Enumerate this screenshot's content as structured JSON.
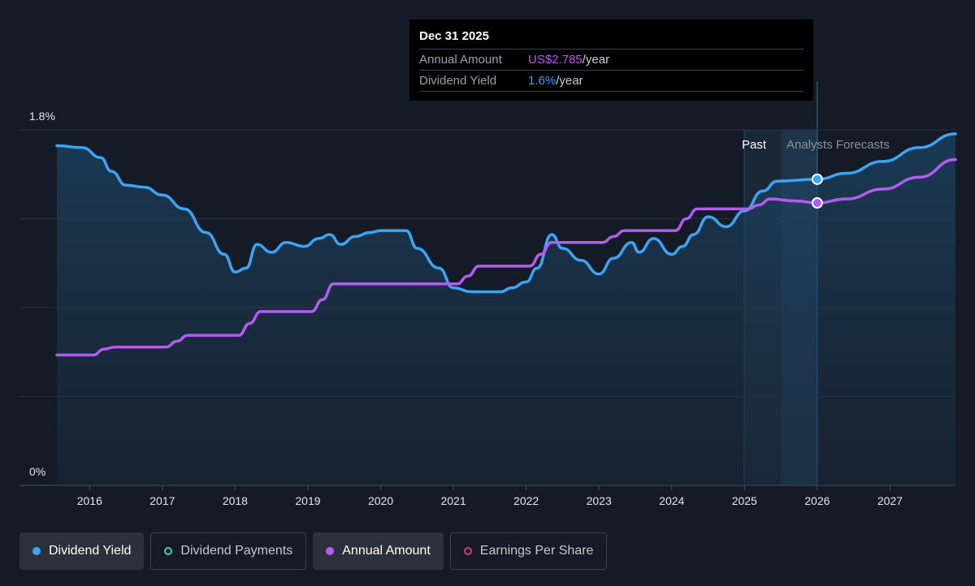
{
  "tooltip": {
    "date": "Dec 31 2025",
    "rows": [
      {
        "label": "Annual Amount",
        "value": "US$2.785",
        "unit": "/year"
      },
      {
        "label": "Dividend Yield",
        "value": "1.6%",
        "unit": "/year"
      }
    ]
  },
  "labels": {
    "past": "Past",
    "forecast": "Analysts Forecasts"
  },
  "legend": [
    {
      "label": "Dividend Yield",
      "color": "#3ba4f5",
      "filled": true,
      "active": true
    },
    {
      "label": "Dividend Payments",
      "color": "#40d0b8",
      "filled": false,
      "active": false
    },
    {
      "label": "Annual Amount",
      "color": "#b45cf2",
      "filled": true,
      "active": true
    },
    {
      "label": "Earnings Per Share",
      "color": "#d03a8a",
      "filled": false,
      "active": false
    }
  ],
  "colors": {
    "background": "#151b26",
    "yield": "#3ba4f5",
    "amount": "#b45cf2",
    "tooltip_bg": "#000000"
  },
  "chart_data": {
    "type": "line",
    "title": "",
    "xlabel": "",
    "ylabel": "",
    "x_ticks": [
      "2016",
      "2017",
      "2018",
      "2019",
      "2020",
      "2021",
      "2022",
      "2023",
      "2024",
      "2025",
      "2026",
      "2027"
    ],
    "y_ticks": [
      "0%",
      "1.8%"
    ],
    "ylim": [
      0,
      1.8
    ],
    "xlim": [
      2015.55,
      2027.9
    ],
    "past_forecast_split": 2025.5,
    "marker_x": 2026.0,
    "grid": true,
    "series": [
      {
        "name": "Dividend Yield",
        "color": "#3ba4f5",
        "area": true,
        "points": [
          [
            2015.55,
            1.72
          ],
          [
            2015.9,
            1.71
          ],
          [
            2016.15,
            1.66
          ],
          [
            2016.3,
            1.59
          ],
          [
            2016.5,
            1.52
          ],
          [
            2016.75,
            1.51
          ],
          [
            2017.0,
            1.47
          ],
          [
            2017.3,
            1.4
          ],
          [
            2017.6,
            1.28
          ],
          [
            2017.85,
            1.17
          ],
          [
            2018.0,
            1.08
          ],
          [
            2018.15,
            1.1
          ],
          [
            2018.3,
            1.22
          ],
          [
            2018.5,
            1.18
          ],
          [
            2018.7,
            1.23
          ],
          [
            2018.95,
            1.21
          ],
          [
            2019.15,
            1.25
          ],
          [
            2019.3,
            1.27
          ],
          [
            2019.45,
            1.22
          ],
          [
            2019.65,
            1.26
          ],
          [
            2019.85,
            1.28
          ],
          [
            2020.0,
            1.29
          ],
          [
            2020.35,
            1.29
          ],
          [
            2020.5,
            1.2
          ],
          [
            2020.8,
            1.1
          ],
          [
            2021.0,
            1.0
          ],
          [
            2021.25,
            0.98
          ],
          [
            2021.5,
            0.98
          ],
          [
            2021.65,
            0.98
          ],
          [
            2021.8,
            1.0
          ],
          [
            2022.0,
            1.03
          ],
          [
            2022.15,
            1.1
          ],
          [
            2022.35,
            1.27
          ],
          [
            2022.5,
            1.2
          ],
          [
            2022.75,
            1.14
          ],
          [
            2023.0,
            1.07
          ],
          [
            2023.2,
            1.15
          ],
          [
            2023.45,
            1.23
          ],
          [
            2023.55,
            1.18
          ],
          [
            2023.75,
            1.25
          ],
          [
            2024.0,
            1.17
          ],
          [
            2024.15,
            1.21
          ],
          [
            2024.3,
            1.27
          ],
          [
            2024.5,
            1.36
          ],
          [
            2024.75,
            1.31
          ],
          [
            2025.0,
            1.39
          ],
          [
            2025.25,
            1.49
          ],
          [
            2025.45,
            1.54
          ],
          [
            2026.0,
            1.55
          ],
          [
            2026.4,
            1.58
          ],
          [
            2026.9,
            1.64
          ],
          [
            2027.4,
            1.71
          ],
          [
            2027.9,
            1.78
          ]
        ]
      },
      {
        "name": "Annual Amount",
        "color": "#b45cf2",
        "area": false,
        "points": [
          [
            2015.55,
            0.66
          ],
          [
            2016.05,
            0.66
          ],
          [
            2016.2,
            0.69
          ],
          [
            2016.35,
            0.7
          ],
          [
            2017.05,
            0.7
          ],
          [
            2017.2,
            0.73
          ],
          [
            2017.35,
            0.76
          ],
          [
            2018.05,
            0.76
          ],
          [
            2018.2,
            0.82
          ],
          [
            2018.35,
            0.88
          ],
          [
            2019.05,
            0.88
          ],
          [
            2019.2,
            0.94
          ],
          [
            2019.35,
            1.02
          ],
          [
            2021.05,
            1.02
          ],
          [
            2021.2,
            1.06
          ],
          [
            2021.35,
            1.11
          ],
          [
            2022.05,
            1.11
          ],
          [
            2022.2,
            1.17
          ],
          [
            2022.35,
            1.23
          ],
          [
            2023.05,
            1.23
          ],
          [
            2023.2,
            1.26
          ],
          [
            2023.35,
            1.29
          ],
          [
            2024.05,
            1.29
          ],
          [
            2024.2,
            1.35
          ],
          [
            2024.35,
            1.4
          ],
          [
            2025.05,
            1.4
          ],
          [
            2025.2,
            1.42
          ],
          [
            2025.35,
            1.45
          ],
          [
            2025.7,
            1.44
          ],
          [
            2026.0,
            1.43
          ],
          [
            2026.4,
            1.45
          ],
          [
            2026.9,
            1.5
          ],
          [
            2027.4,
            1.56
          ],
          [
            2027.9,
            1.65
          ]
        ]
      }
    ]
  }
}
